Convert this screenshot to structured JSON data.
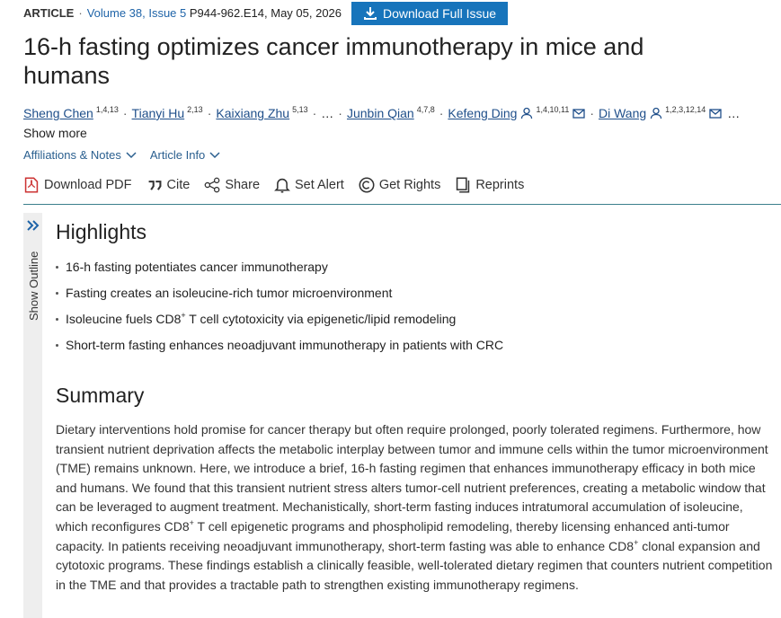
{
  "meta": {
    "type": "ARTICLE",
    "separator": "·",
    "volume": "Volume 38, Issue 5",
    "pages_date": "P944-962.E14, May 05, 2026",
    "download_issue": "Download Full Issue"
  },
  "title": "16-h fasting optimizes cancer immunotherapy in mice and humans",
  "authors": [
    {
      "name": "Sheng Chen",
      "sup": "1,4,13"
    },
    {
      "name": "Tianyi Hu",
      "sup": "2,13"
    },
    {
      "name": "Kaixiang Zhu",
      "sup": "5,13"
    },
    {
      "more": "…"
    },
    {
      "name": "Junbin Qian",
      "sup": "4,7,8"
    },
    {
      "name": "Kefeng Ding",
      "sup": "1,4,10,11",
      "corresponding": true
    },
    {
      "name": "Di Wang",
      "sup": "1,2,3,12,14",
      "corresponding": true
    }
  ],
  "authors_trailing": "…",
  "show_more": "Show more",
  "info_links": [
    "Affiliations & Notes",
    "Article Info"
  ],
  "toolbar": [
    "Download PDF",
    "Cite",
    "Share",
    "Set Alert",
    "Get Rights",
    "Reprints"
  ],
  "outline": "Show Outline",
  "highlights": {
    "heading": "Highlights",
    "items": [
      [
        {
          "text": "16-h fasting potentiates cancer immunotherapy"
        }
      ],
      [
        {
          "text": "Fasting creates an isoleucine-rich tumor microenvironment"
        }
      ],
      [
        {
          "text": "Isoleucine fuels CD8"
        },
        {
          "sup": "+"
        },
        {
          "text": " T cell cytotoxicity via epigenetic/lipid remodeling"
        }
      ],
      [
        {
          "text": "Short-term fasting enhances neoadjuvant immunotherapy in patients with CRC"
        }
      ]
    ]
  },
  "summary": {
    "heading": "Summary",
    "segments": [
      {
        "text": "Dietary interventions hold promise for cancer therapy but often require prolonged, poorly tolerated regimens. Furthermore, how transient nutrient deprivation affects the metabolic interplay between tumor and immune cells within the tumor microenvironment (TME) remains unknown. Here, we introduce a brief, 16-h fasting regimen that enhances immunotherapy efficacy in both mice and humans. We found that this transient nutrient stress alters tumor-cell nutrient preferences, creating a metabolic window that can be leveraged to augment treatment. Mechanistically, short-term fasting induces intratumoral accumulation of isoleucine, which reconfigures CD8"
      },
      {
        "sup": "+"
      },
      {
        "text": " T cell epigenetic programs and phospholipid remodeling, thereby licensing enhanced anti-tumor capacity. In patients receiving neoadjuvant immunotherapy, short-term fasting was able to enhance CD8"
      },
      {
        "sup": "+"
      },
      {
        "text": " clonal expansion and cytotoxic programs. These findings establish a clinically feasible, well-tolerated dietary regimen that counters nutrient competition in the TME and that provides a tractable path to strengthen existing immunotherapy regimens."
      }
    ]
  }
}
